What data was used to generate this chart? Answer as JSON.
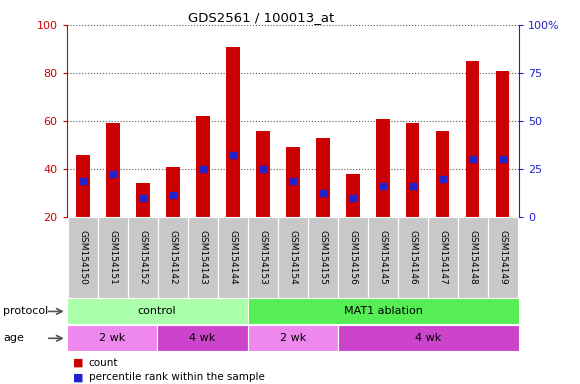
{
  "title": "GDS2561 / 100013_at",
  "samples": [
    "GSM154150",
    "GSM154151",
    "GSM154152",
    "GSM154142",
    "GSM154143",
    "GSM154144",
    "GSM154153",
    "GSM154154",
    "GSM154155",
    "GSM154156",
    "GSM154145",
    "GSM154146",
    "GSM154147",
    "GSM154148",
    "GSM154149"
  ],
  "counts": [
    46,
    59,
    34,
    41,
    62,
    91,
    56,
    49,
    53,
    38,
    61,
    59,
    56,
    85,
    81
  ],
  "percentile_ranks": [
    35,
    38,
    28,
    29,
    40,
    46,
    40,
    35,
    30,
    28,
    33,
    33,
    36,
    44,
    44
  ],
  "bar_color": "#CC0000",
  "dot_color": "#2222CC",
  "ylim": [
    20,
    100
  ],
  "y2lim": [
    0,
    100
  ],
  "y_ticks": [
    20,
    40,
    60,
    80,
    100
  ],
  "y2_ticks": [
    0,
    25,
    50,
    75,
    100
  ],
  "ytick_color": "#CC0000",
  "y2tick_color": "#2222CC",
  "protocol_groups": [
    {
      "label": "control",
      "start": 0,
      "end": 6,
      "color": "#AAFFAA"
    },
    {
      "label": "MAT1 ablation",
      "start": 6,
      "end": 15,
      "color": "#55EE55"
    }
  ],
  "age_groups": [
    {
      "label": "2 wk",
      "start": 0,
      "end": 3,
      "color": "#EE88EE"
    },
    {
      "label": "4 wk",
      "start": 3,
      "end": 6,
      "color": "#CC44CC"
    },
    {
      "label": "2 wk",
      "start": 6,
      "end": 9,
      "color": "#EE88EE"
    },
    {
      "label": "4 wk",
      "start": 9,
      "end": 15,
      "color": "#CC44CC"
    }
  ],
  "legend_count_color": "#CC0000",
  "legend_dot_color": "#2222CC",
  "bg_color": "#FFFFFF",
  "xticklabel_bg": "#C8C8C8",
  "protocol_label": "protocol",
  "age_label": "age"
}
